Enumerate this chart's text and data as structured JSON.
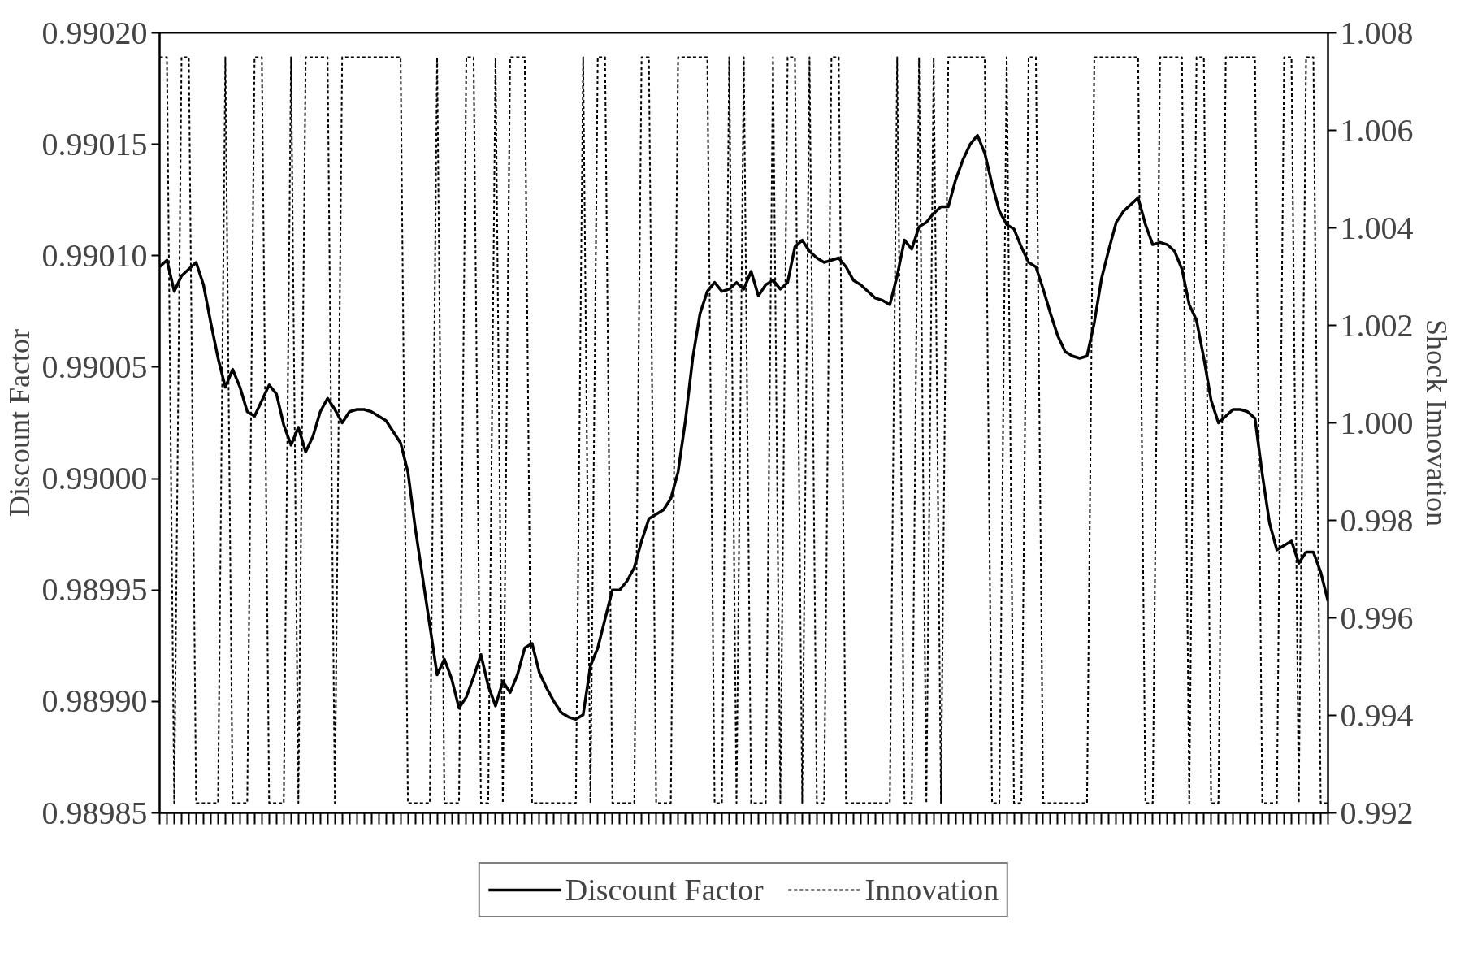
{
  "chart_data": {
    "type": "line",
    "ylabel": "Discount Factor",
    "y2label": "Shock Innovation",
    "categories": [
      null,
      null,
      null,
      null,
      null,
      null,
      null,
      null,
      null,
      null,
      null,
      null,
      null,
      null,
      null,
      null,
      null,
      null,
      null,
      null,
      null,
      null,
      null,
      null,
      null,
      null,
      null,
      null,
      null,
      null,
      null,
      null,
      null,
      null,
      null,
      null,
      null,
      null,
      null,
      null,
      null,
      null,
      null,
      null,
      null,
      null,
      null,
      null,
      null,
      null,
      null,
      null,
      null,
      null,
      null,
      null,
      null,
      null,
      null,
      null,
      null,
      null,
      null,
      null,
      null,
      null,
      null,
      null,
      null,
      null,
      null,
      null,
      null,
      null,
      null,
      null,
      null,
      null,
      null,
      null,
      null,
      null,
      null,
      null,
      null,
      null,
      null,
      null,
      null,
      null,
      null,
      null,
      null,
      null,
      null,
      null,
      null,
      null,
      null,
      null,
      null,
      null,
      null,
      null,
      null,
      null,
      null,
      null,
      null,
      null,
      null,
      null,
      null,
      null,
      null,
      null,
      null,
      null,
      null,
      null,
      null,
      null,
      null,
      null,
      null,
      null,
      null,
      null,
      null,
      null,
      null,
      null,
      null,
      null,
      null,
      null,
      null,
      null,
      null,
      null,
      null,
      null,
      null,
      null,
      null,
      null,
      null,
      null,
      null,
      null,
      null,
      null,
      null,
      null,
      null,
      null,
      null,
      null,
      null,
      null,
      null
    ],
    "ylim": [
      0.98985,
      0.9902
    ],
    "yticks": [
      {
        "value": 0.98985,
        "label": "0.98985"
      },
      {
        "value": 0.9899,
        "label": "0.98990"
      },
      {
        "value": 0.98995,
        "label": "0.98995"
      },
      {
        "value": 0.99,
        "label": "0.99000"
      },
      {
        "value": 0.99005,
        "label": "0.99005"
      },
      {
        "value": 0.9901,
        "label": "0.99010"
      },
      {
        "value": 0.99015,
        "label": "0.99015"
      },
      {
        "value": 0.9902,
        "label": "0.99020"
      }
    ],
    "y2lim": [
      0.992,
      1.008
    ],
    "y2ticks": [
      {
        "value": 0.992,
        "label": "0.992"
      },
      {
        "value": 0.994,
        "label": "0.994"
      },
      {
        "value": 0.996,
        "label": "0.996"
      },
      {
        "value": 0.998,
        "label": "0.998"
      },
      {
        "value": 1.0,
        "label": "1.000"
      },
      {
        "value": 1.002,
        "label": "1.002"
      },
      {
        "value": 1.004,
        "label": "1.004"
      },
      {
        "value": 1.006,
        "label": "1.006"
      },
      {
        "value": 1.008,
        "label": "1.008"
      }
    ],
    "legend": "bottom",
    "series": [
      {
        "name": "Discount Factor",
        "color": "#000000",
        "line_style": "solid",
        "values": [
          0.990095,
          0.990098,
          0.990084,
          0.990091,
          0.990094,
          0.990097,
          0.990087,
          0.99007,
          0.990054,
          0.990041,
          0.990049,
          0.990041,
          0.99003,
          0.990028,
          0.990035,
          0.990042,
          0.990038,
          0.990024,
          0.990015,
          0.990023,
          0.990012,
          0.990019,
          0.99003,
          0.990036,
          0.990031,
          0.990025,
          0.99003,
          0.990031,
          0.990031,
          0.99003,
          0.990028,
          0.990026,
          0.990021,
          0.990016,
          0.990003,
          0.989978,
          0.989956,
          0.989934,
          0.989912,
          0.989919,
          0.98991,
          0.989897,
          0.989902,
          0.989911,
          0.989921,
          0.989907,
          0.989898,
          0.989909,
          0.989904,
          0.989912,
          0.989924,
          0.989926,
          0.989913,
          0.989906,
          0.9899,
          0.989895,
          0.989893,
          0.989892,
          0.989894,
          0.989916,
          0.989924,
          0.989937,
          0.98995,
          0.98995,
          0.989954,
          0.98996,
          0.989972,
          0.989982,
          0.989984,
          0.989986,
          0.989991,
          0.990003,
          0.990026,
          0.990054,
          0.990074,
          0.990084,
          0.990088,
          0.990084,
          0.990085,
          0.990088,
          0.990085,
          0.990093,
          0.990082,
          0.990087,
          0.990089,
          0.990085,
          0.990088,
          0.990104,
          0.990107,
          0.990102,
          0.990099,
          0.990097,
          0.990098,
          0.990099,
          0.990095,
          0.990089,
          0.990087,
          0.990084,
          0.990081,
          0.99008,
          0.990078,
          0.990091,
          0.990107,
          0.990103,
          0.990113,
          0.990115,
          0.990119,
          0.990122,
          0.990122,
          0.990134,
          0.990143,
          0.99015,
          0.990154,
          0.990146,
          0.990132,
          0.99012,
          0.990114,
          0.990112,
          0.990104,
          0.990097,
          0.990095,
          0.990085,
          0.990074,
          0.990064,
          0.990057,
          0.990055,
          0.990054,
          0.990055,
          0.99007,
          0.99009,
          0.990103,
          0.990115,
          0.99012,
          0.990123,
          0.990126,
          0.990114,
          0.990105,
          0.990106,
          0.990105,
          0.990102,
          0.990094,
          0.990078,
          0.990071,
          0.990054,
          0.990035,
          0.990025,
          0.990028,
          0.990031,
          0.990031,
          0.99003,
          0.990027,
          0.990002,
          0.98998,
          0.989968,
          0.98997,
          0.989972,
          0.989962,
          0.989967,
          0.989967,
          0.989958,
          0.989945
        ]
      },
      {
        "name": "Innovation",
        "color": "#000000",
        "line_style": "dotted",
        "axis": "y2",
        "values": [
          1.0075,
          1.0075,
          0.9922,
          1.0075,
          1.0075,
          0.9922,
          0.9922,
          0.9922,
          0.9922,
          1.0075,
          0.9922,
          0.9922,
          0.9922,
          1.0075,
          1.0075,
          0.9922,
          0.9922,
          0.9922,
          1.0075,
          0.9922,
          1.0075,
          1.0075,
          1.0075,
          1.0075,
          0.9922,
          1.0075,
          1.0075,
          1.0075,
          1.0075,
          1.0075,
          1.0075,
          1.0075,
          1.0075,
          1.0075,
          0.9922,
          0.9922,
          0.9922,
          0.9922,
          1.0075,
          0.9922,
          0.9922,
          0.9922,
          1.0075,
          1.0075,
          0.9922,
          0.9922,
          1.0075,
          0.9922,
          1.0075,
          1.0075,
          1.0075,
          0.9922,
          0.9922,
          0.9922,
          0.9922,
          0.9922,
          0.9922,
          0.9922,
          1.0075,
          0.9922,
          1.0075,
          1.0075,
          0.9922,
          0.9922,
          0.9922,
          0.9922,
          1.0075,
          1.0075,
          0.9922,
          0.9922,
          0.9922,
          1.0075,
          1.0075,
          1.0075,
          1.0075,
          1.0075,
          0.9922,
          0.9922,
          1.0075,
          0.9922,
          1.0075,
          0.9922,
          0.9922,
          0.9922,
          1.0075,
          0.9922,
          1.0075,
          1.0075,
          0.9922,
          1.0075,
          0.9922,
          0.9922,
          1.0075,
          1.0075,
          0.9922,
          0.9922,
          0.9922,
          0.9922,
          0.9922,
          0.9922,
          0.9922,
          1.0075,
          0.9922,
          0.9922,
          1.0075,
          0.9922,
          1.0075,
          0.9922,
          1.0075,
          1.0075,
          1.0075,
          1.0075,
          1.0075,
          1.0075,
          0.9922,
          0.9922,
          1.0075,
          0.9922,
          0.9922,
          1.0075,
          1.0075,
          0.9922,
          0.9922,
          0.9922,
          0.9922,
          0.9922,
          0.9922,
          0.9922,
          1.0075,
          1.0075,
          1.0075,
          1.0075,
          1.0075,
          1.0075,
          1.0075,
          0.9922,
          0.9922,
          1.0075,
          1.0075,
          1.0075,
          1.0075,
          0.9922,
          1.0075,
          1.0075,
          0.9922,
          0.9922,
          1.0075,
          1.0075,
          1.0075,
          1.0075,
          1.0075,
          0.9922,
          0.9922,
          0.9922,
          1.0075,
          1.0075,
          0.9922,
          1.0075,
          1.0075,
          0.9922,
          0.9922
        ]
      }
    ]
  }
}
